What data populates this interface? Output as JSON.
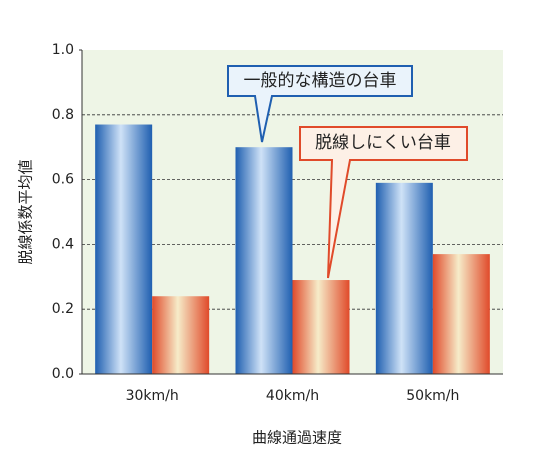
{
  "chart_data": {
    "type": "bar",
    "y_label": "脱線係数平均値",
    "x_label": "曲線通過速度",
    "categories": [
      "30km/h",
      "40km/h",
      "50km/h"
    ],
    "series": [
      {
        "name": "一般的な構造の台車",
        "color": "#1f5fb0",
        "values": [
          0.77,
          0.7,
          0.59
        ]
      },
      {
        "name": "脱線しにくい台車",
        "color": "#e04a2a",
        "values": [
          0.24,
          0.29,
          0.37
        ]
      }
    ],
    "ylim": [
      0,
      1
    ],
    "yticks": [
      {
        "value": 0,
        "label": "0.0"
      },
      0.2,
      0.4,
      0.6,
      0.8,
      {
        "value": 1,
        "label": "1.0"
      }
    ],
    "grid": true
  }
}
